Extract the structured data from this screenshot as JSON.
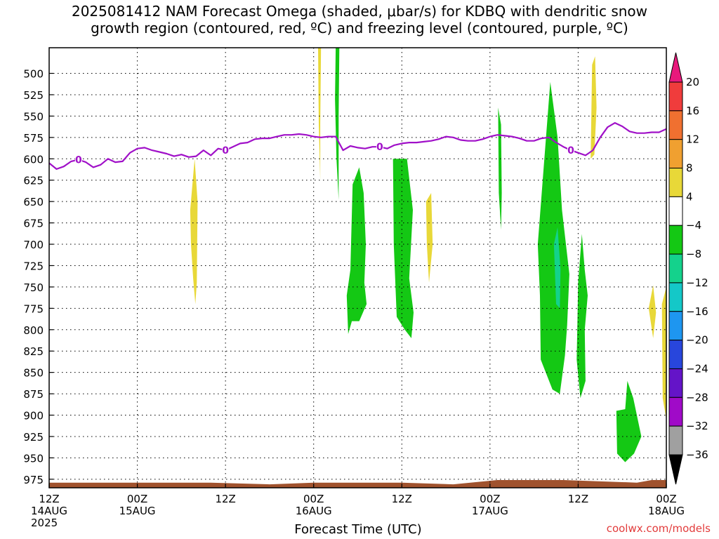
{
  "title_lines": [
    "2025081412 NAM Forecast Omega (shaded, μbar/s) for KDBQ with dendritic snow",
    "growth region (contoured, red, ºC) and freezing level (contoured, purple, ºC)"
  ],
  "credit": "coolwx.com/models",
  "chart_data": {
    "type": "area",
    "xlabel": "Forecast Time (UTC)",
    "xlim_hours": [
      0,
      84
    ],
    "ylim_hpa": [
      985,
      470
    ],
    "grid": true,
    "y_ticks": [
      500,
      525,
      550,
      575,
      600,
      625,
      650,
      675,
      700,
      725,
      750,
      775,
      800,
      825,
      850,
      875,
      900,
      925,
      950,
      975
    ],
    "x_ticks": [
      {
        "h": 0,
        "lines": [
          "12Z",
          "14AUG",
          "2025"
        ]
      },
      {
        "h": 12,
        "lines": [
          "00Z",
          "15AUG"
        ]
      },
      {
        "h": 24,
        "lines": [
          "12Z"
        ]
      },
      {
        "h": 36,
        "lines": [
          "00Z",
          "16AUG"
        ]
      },
      {
        "h": 48,
        "lines": [
          "12Z"
        ]
      },
      {
        "h": 60,
        "lines": [
          "00Z",
          "17AUG"
        ]
      },
      {
        "h": 72,
        "lines": [
          "12Z"
        ]
      },
      {
        "h": 84,
        "lines": [
          "00Z",
          "18AUG"
        ]
      }
    ],
    "colorbar": {
      "labels": [
        "20",
        "16",
        "12",
        "8",
        "4",
        "−4",
        "−8",
        "−12",
        "−16",
        "−20",
        "−24",
        "−28",
        "−32",
        "−36"
      ],
      "colors": [
        "#e8197c",
        "#f03c3c",
        "#f07030",
        "#f0a030",
        "#e8d838",
        "#ffffff",
        "#14c814",
        "#14d28c",
        "#14c8c8",
        "#1e96f0",
        "#2846dc",
        "#6414c8",
        "#a00ac8",
        "#a0a0a0",
        "#000000"
      ]
    },
    "freezing_level": {
      "color": "#a010c8",
      "label": "0",
      "label_hours": [
        4,
        24,
        45,
        71
      ],
      "points": [
        [
          0,
          605
        ],
        [
          1,
          612
        ],
        [
          2,
          609
        ],
        [
          3,
          603
        ],
        [
          4,
          601
        ],
        [
          5,
          604
        ],
        [
          6,
          610
        ],
        [
          7,
          607
        ],
        [
          8,
          600
        ],
        [
          9,
          604
        ],
        [
          10,
          603
        ],
        [
          11,
          593
        ],
        [
          12,
          588
        ],
        [
          13,
          587
        ],
        [
          14,
          590
        ],
        [
          15,
          592
        ],
        [
          16,
          594
        ],
        [
          17,
          597
        ],
        [
          18,
          595
        ],
        [
          19,
          598
        ],
        [
          20,
          597
        ],
        [
          21,
          590
        ],
        [
          22,
          596
        ],
        [
          23,
          588
        ],
        [
          24,
          590
        ],
        [
          25,
          586
        ],
        [
          26,
          582
        ],
        [
          27,
          581
        ],
        [
          28,
          577
        ],
        [
          29,
          576
        ],
        [
          30,
          576
        ],
        [
          31,
          574
        ],
        [
          32,
          572
        ],
        [
          33,
          572
        ],
        [
          34,
          571
        ],
        [
          35,
          572
        ],
        [
          36,
          574
        ],
        [
          37,
          575
        ],
        [
          38,
          574
        ],
        [
          39,
          574
        ],
        [
          40,
          590
        ],
        [
          41,
          585
        ],
        [
          42,
          587
        ],
        [
          43,
          588
        ],
        [
          44,
          586
        ],
        [
          45,
          586
        ],
        [
          46,
          588
        ],
        [
          47,
          584
        ],
        [
          48,
          582
        ],
        [
          49,
          581
        ],
        [
          50,
          581
        ],
        [
          51,
          580
        ],
        [
          52,
          579
        ],
        [
          53,
          577
        ],
        [
          54,
          574
        ],
        [
          55,
          575
        ],
        [
          56,
          578
        ],
        [
          57,
          579
        ],
        [
          58,
          579
        ],
        [
          59,
          577
        ],
        [
          60,
          574
        ],
        [
          61,
          572
        ],
        [
          62,
          573
        ],
        [
          63,
          574
        ],
        [
          64,
          576
        ],
        [
          65,
          579
        ],
        [
          66,
          579
        ],
        [
          67,
          576
        ],
        [
          68,
          575
        ],
        [
          69,
          581
        ],
        [
          70,
          586
        ],
        [
          71,
          590
        ],
        [
          72,
          593
        ],
        [
          73,
          596
        ],
        [
          74,
          590
        ],
        [
          75,
          575
        ],
        [
          76,
          563
        ],
        [
          77,
          558
        ],
        [
          78,
          562
        ],
        [
          79,
          568
        ],
        [
          80,
          570
        ],
        [
          81,
          570
        ],
        [
          82,
          569
        ],
        [
          83,
          569
        ],
        [
          84,
          565
        ]
      ]
    },
    "terrain": {
      "color": "#a0522d",
      "top_hpa": [
        [
          0,
          979
        ],
        [
          22,
          979
        ],
        [
          30,
          981
        ],
        [
          36,
          979
        ],
        [
          48,
          979
        ],
        [
          55,
          981
        ],
        [
          61,
          976
        ],
        [
          70,
          976
        ],
        [
          80,
          979
        ],
        [
          82,
          976
        ],
        [
          84,
          976
        ]
      ]
    },
    "omega_regions": [
      {
        "color": "#e8d838",
        "points": [
          [
            36.6,
            470
          ],
          [
            37.0,
            470
          ],
          [
            36.9,
            560
          ],
          [
            36.9,
            625
          ],
          [
            36.7,
            560
          ]
        ]
      },
      {
        "color": "#14c814",
        "points": [
          [
            39.0,
            470
          ],
          [
            39.5,
            470
          ],
          [
            39.4,
            550
          ],
          [
            39.4,
            648
          ],
          [
            39.1,
            600
          ],
          [
            38.9,
            530
          ]
        ]
      },
      {
        "color": "#e8d838",
        "points": [
          [
            19.2,
            660
          ],
          [
            19.8,
            600
          ],
          [
            20.2,
            650
          ],
          [
            20.1,
            745
          ],
          [
            19.9,
            770
          ],
          [
            19.6,
            740
          ],
          [
            19.3,
            700
          ]
        ]
      },
      {
        "color": "#14c814",
        "points": [
          [
            41.3,
            630
          ],
          [
            42.2,
            610
          ],
          [
            42.8,
            640
          ],
          [
            43.1,
            700
          ],
          [
            42.9,
            745
          ],
          [
            43.2,
            770
          ],
          [
            42.2,
            790
          ],
          [
            41.2,
            790
          ],
          [
            40.7,
            805
          ],
          [
            40.5,
            760
          ],
          [
            41.0,
            730
          ]
        ]
      },
      {
        "color": "#14c814",
        "points": [
          [
            46.8,
            600
          ],
          [
            48.7,
            600
          ],
          [
            49.5,
            660
          ],
          [
            49.0,
            740
          ],
          [
            49.6,
            780
          ],
          [
            49.3,
            810
          ],
          [
            48.4,
            800
          ],
          [
            47.3,
            785
          ],
          [
            46.9,
            700
          ]
        ]
      },
      {
        "color": "#e8d838",
        "points": [
          [
            51.3,
            650
          ],
          [
            52.0,
            640
          ],
          [
            52.2,
            700
          ],
          [
            51.7,
            745
          ],
          [
            51.4,
            700
          ]
        ]
      },
      {
        "color": "#14c814",
        "points": [
          [
            61.1,
            540
          ],
          [
            61.5,
            560
          ],
          [
            61.6,
            640
          ],
          [
            61.5,
            683
          ],
          [
            61.2,
            640
          ]
        ]
      },
      {
        "color": "#14c814",
        "points": [
          [
            66.5,
            700
          ],
          [
            68.2,
            510
          ],
          [
            69.2,
            575
          ],
          [
            69.8,
            660
          ],
          [
            70.8,
            735
          ],
          [
            70.5,
            795
          ],
          [
            70.2,
            830
          ],
          [
            69.5,
            875
          ],
          [
            68.5,
            870
          ],
          [
            66.9,
            835
          ],
          [
            66.8,
            760
          ]
        ]
      },
      {
        "color": "#14d28c",
        "points": [
          [
            68.7,
            700
          ],
          [
            69.2,
            680
          ],
          [
            69.6,
            730
          ],
          [
            69.5,
            775
          ],
          [
            69.0,
            770
          ]
        ]
      },
      {
        "color": "#14c814",
        "points": [
          [
            72.0,
            745
          ],
          [
            72.5,
            688
          ],
          [
            72.9,
            730
          ],
          [
            73.3,
            760
          ],
          [
            72.9,
            800
          ],
          [
            73.0,
            860
          ],
          [
            72.3,
            880
          ],
          [
            71.8,
            835
          ],
          [
            71.9,
            790
          ]
        ]
      },
      {
        "color": "#e8d838",
        "points": [
          [
            73.7,
            600
          ],
          [
            73.9,
            490
          ],
          [
            74.3,
            480
          ],
          [
            74.5,
            540
          ],
          [
            74.2,
            595
          ]
        ]
      },
      {
        "color": "#e8d838",
        "points": [
          [
            81.6,
            775
          ],
          [
            82.2,
            748
          ],
          [
            82.6,
            780
          ],
          [
            82.2,
            810
          ]
        ]
      },
      {
        "color": "#e8d838",
        "points": [
          [
            83.4,
            770
          ],
          [
            84.0,
            750
          ],
          [
            84.0,
            905
          ],
          [
            83.5,
            880
          ]
        ]
      },
      {
        "color": "#14c814",
        "points": [
          [
            77.2,
            895
          ],
          [
            78.4,
            893
          ],
          [
            78.7,
            860
          ],
          [
            79.5,
            880
          ],
          [
            80.6,
            925
          ],
          [
            79.6,
            945
          ],
          [
            78.4,
            955
          ],
          [
            77.3,
            945
          ]
        ]
      }
    ]
  }
}
